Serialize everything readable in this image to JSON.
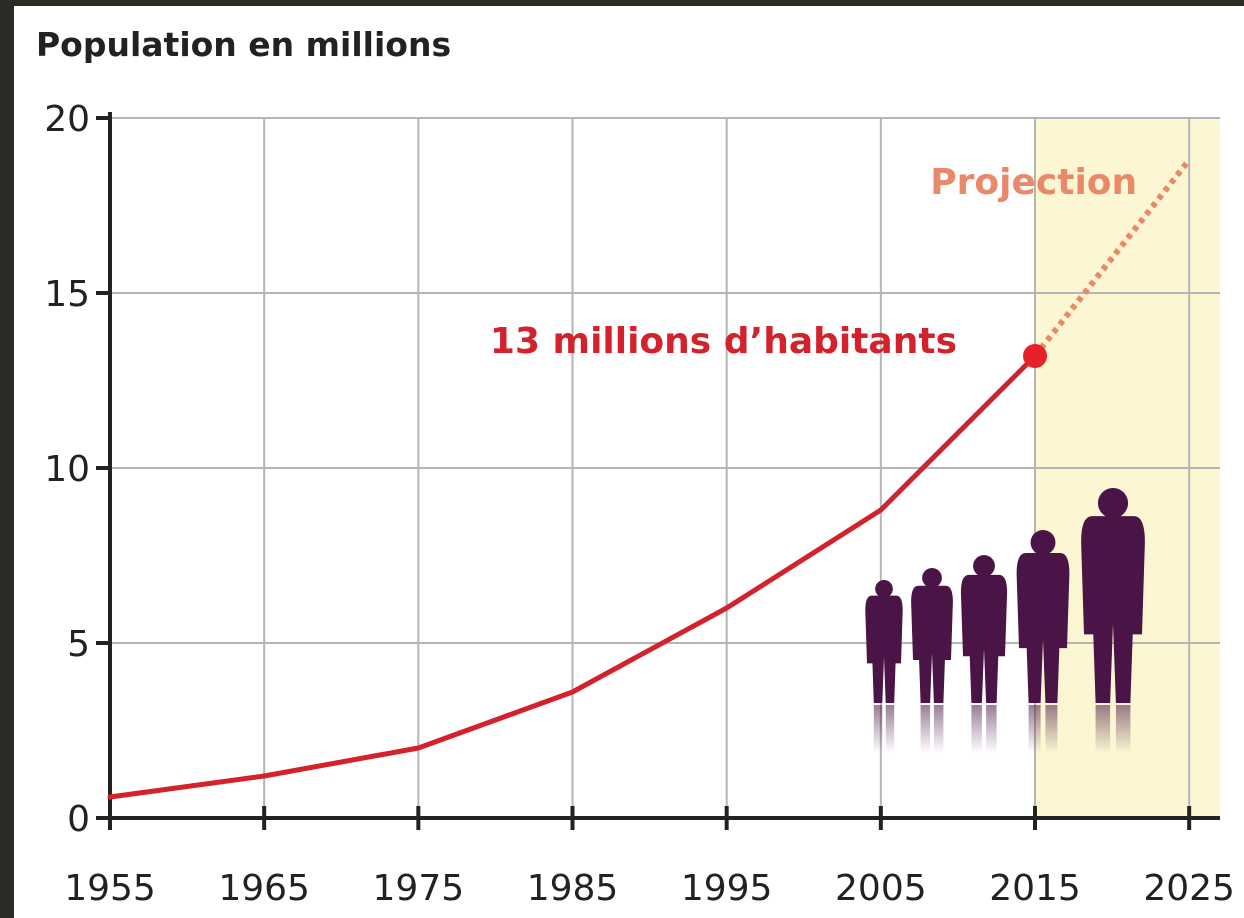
{
  "chart_data": {
    "type": "line",
    "title": "Population en millions",
    "xlabel": "",
    "ylabel": "",
    "x_ticks": [
      "1955",
      "1965",
      "1975",
      "1985",
      "1995",
      "2005",
      "2015",
      "2025"
    ],
    "y_ticks": [
      "0",
      "5",
      "10",
      "15",
      "20"
    ],
    "xlim": [
      1955,
      2027
    ],
    "ylim": [
      0,
      20
    ],
    "grid": true,
    "projection_range": [
      2015,
      2027
    ],
    "series": [
      {
        "x": [
          1955,
          1965,
          1975,
          1985,
          1995,
          2005,
          2015
        ],
        "values": [
          0.6,
          1.2,
          2.0,
          3.6,
          6.0,
          8.8,
          13.2
        ],
        "color": "#d3222c",
        "style": "solid"
      },
      {
        "name": "Projection",
        "x": [
          2015,
          2025
        ],
        "values": [
          13.2,
          18.8
        ],
        "color": "#e8896a",
        "style": "dotted"
      }
    ],
    "annotations": [
      {
        "text": "13 millions d’habitants",
        "x": 2015,
        "y": 13.2,
        "color": "#d3222c"
      },
      {
        "text": "Projection",
        "x": 2025,
        "y": 18.8,
        "color": "#e8896a"
      }
    ],
    "colors": {
      "projection_band": "#fcf6d2",
      "grid": "#b5b5b5",
      "axis": "#222222",
      "silhouettes": "#4a1446"
    },
    "illustration": "people-silhouettes-icon"
  }
}
